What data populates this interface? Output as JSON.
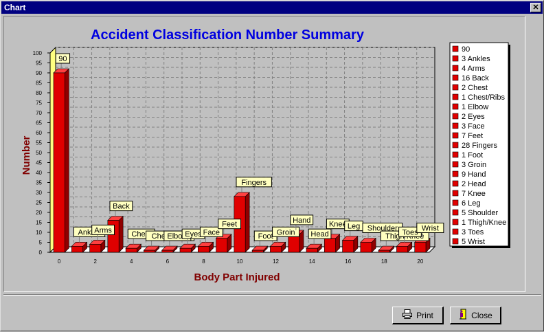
{
  "window": {
    "title": "Chart",
    "close_glyph": "✕"
  },
  "buttons": {
    "print_label": "Print",
    "close_label": "Close",
    "print_icon": "printer-icon",
    "close_icon": "door-exit-icon"
  },
  "colors": {
    "bar": "#e00000",
    "bar_dark": "#900000",
    "title": "#0000e0",
    "axis_label": "#800000",
    "label_bg": "#ffffc0",
    "wall": "#ffff80"
  },
  "chart_data": {
    "type": "bar",
    "title": "Accident Classification Number Summary",
    "xlabel": "Body Part Injured",
    "ylabel": "Number",
    "ylim": [
      0,
      100
    ],
    "ytick_step": 5,
    "x_ticks": [
      "0",
      "2",
      "4",
      "6",
      "8",
      "10",
      "12",
      "14",
      "16",
      "18",
      "20"
    ],
    "grid": true,
    "legend_placement": "right",
    "categories": [
      "",
      "Ankles",
      "Arms",
      "Back",
      "Chest",
      "Chest/Ribs",
      "Elbow",
      "Eyes",
      "Face",
      "Feet",
      "Fingers",
      "Foot",
      "Groin",
      "Hand",
      "Head",
      "Knee",
      "Leg",
      "Shoulder",
      "Thigh/Knee",
      "Toes",
      "Wrist"
    ],
    "values": [
      90,
      3,
      4,
      16,
      2,
      1,
      1,
      2,
      3,
      7,
      28,
      1,
      3,
      9,
      2,
      7,
      6,
      5,
      1,
      3,
      5
    ],
    "bar_labels": [
      "90",
      "Ankles",
      "Arms",
      "Back",
      "Chest",
      "Chest/Ribs",
      "Elbow",
      "Eyes",
      "Face",
      "Feet",
      "Fingers",
      "Foot",
      "Groin",
      "Hand",
      "Head",
      "Knee",
      "Leg",
      "Shoulder",
      "Thigh/Knee",
      "Toes",
      "Wrist"
    ],
    "legend": [
      "90",
      "3 Ankles",
      "4 Arms",
      "16 Back",
      "2 Chest",
      "1 Chest/Ribs",
      "1 Elbow",
      "2 Eyes",
      "3 Face",
      "7 Feet",
      "28 Fingers",
      "1 Foot",
      "3 Groin",
      "9 Hand",
      "2 Head",
      "7 Knee",
      "6 Leg",
      "5 Shoulder",
      "1 Thigh/Knee",
      "3 Toes",
      "5 Wrist"
    ]
  }
}
